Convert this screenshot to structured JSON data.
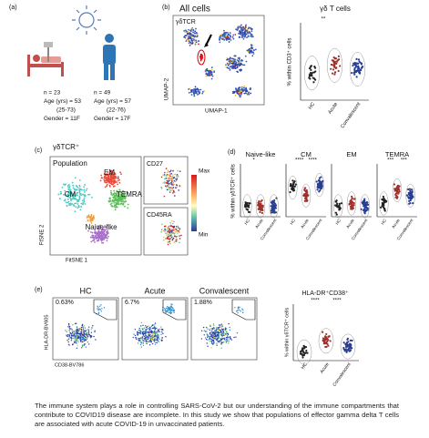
{
  "panel_a": {
    "label": "(a)",
    "groups": [
      {
        "n": "n = 23",
        "age": "Age (yrs) = 53",
        "range": "(25-73)",
        "gender": "Gender = 11F"
      },
      {
        "n": "n = 49",
        "age": "Age (yrs) = 57",
        "range": "(22-76)",
        "gender": "Gender = 17F"
      }
    ]
  },
  "panel_b": {
    "label": "(b)",
    "umap_title": "All cells",
    "marker": "γδTCR",
    "y_axis": "UMAP-2",
    "x_axis": "UMAP-1",
    "plot_title": "γδ T cells",
    "plot_y_axis": "% within CD3⁺ cells",
    "categories": [
      "HC",
      "Acute",
      "Convalescent"
    ],
    "significance": "**"
  },
  "panel_c": {
    "label": "(c)",
    "title": "γδTCR⁺",
    "legend": "Population",
    "clusters": [
      "EM",
      "CM",
      "TEMRA",
      "Naive-like"
    ],
    "markers": [
      "CD27",
      "CD45RA"
    ],
    "scale_max": "Max",
    "scale_min": "Min",
    "y_axis": "FtSNE 2",
    "x_axis": "FitSNE 1"
  },
  "panel_d": {
    "label": "(d)",
    "y_axis": "% within γδTCR⁺ cells",
    "categories": [
      "HC",
      "Acute",
      "Convalescent"
    ],
    "plots": [
      {
        "title": "Naive-like",
        "significance": [
          "*"
        ]
      },
      {
        "title": "CM",
        "significance": [
          "****",
          "****"
        ]
      },
      {
        "title": "EM"
      },
      {
        "title": "TEMRA",
        "significance": [
          "***",
          "***"
        ]
      }
    ]
  },
  "panel_e": {
    "label": "(e)",
    "plots": [
      {
        "title": "HC",
        "gate": "0.63%"
      },
      {
        "title": "Acute",
        "gate": "6.7%"
      },
      {
        "title": "Convalescent",
        "gate": "1.88%"
      }
    ],
    "y_axis": "HLA-DR-BV605",
    "x_axis": "CD38-BV786",
    "plot_title": "HLA-DR⁺CD38⁺",
    "plot_y_axis": "% within γδTCR⁺ cells",
    "categories": [
      "HC",
      "Acute",
      "Convalescent"
    ],
    "significance": [
      "****",
      "****"
    ]
  },
  "caption": "The immune system plays a role in controlling SARS-CoV-2 but our understanding of the immune compartments that contribute to COVID19 disease are incomplete. In this study we show that populations of effector gamma delta T cells are associated with acute COVID-19 in unvaccinated patients."
}
